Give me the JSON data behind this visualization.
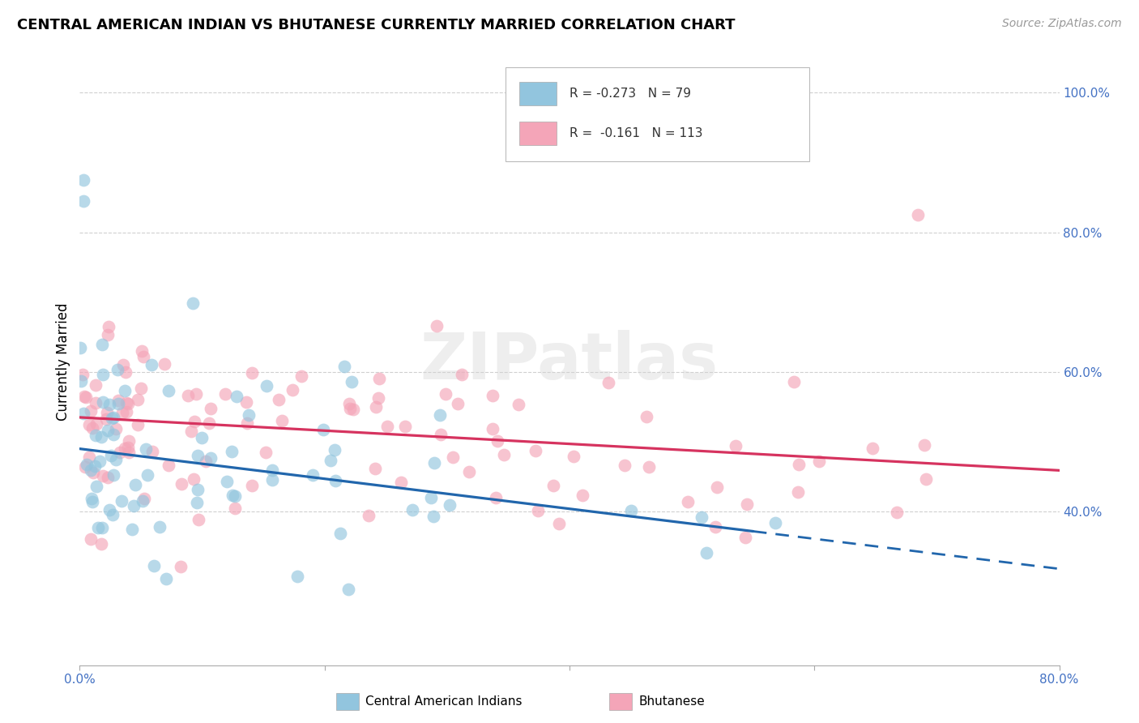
{
  "title": "CENTRAL AMERICAN INDIAN VS BHUTANESE CURRENTLY MARRIED CORRELATION CHART",
  "source": "Source: ZipAtlas.com",
  "ylabel": "Currently Married",
  "x_min": 0.0,
  "x_max": 0.8,
  "y_min": 0.18,
  "y_max": 1.05,
  "color_blue": "#92c5de",
  "color_pink": "#f4a5b8",
  "line_blue": "#2166ac",
  "line_pink": "#d6335f",
  "blue_R": -0.273,
  "blue_N": 79,
  "pink_R": -0.161,
  "pink_N": 113,
  "blue_intercept": 0.49,
  "blue_slope": -0.215,
  "pink_intercept": 0.535,
  "pink_slope": -0.095,
  "legend_label_blue": "Central American Indians",
  "legend_label_pink": "Bhutanese",
  "watermark": "ZIPatlas",
  "background": "#ffffff",
  "grid_color": "#d0d0d0",
  "tick_color": "#4472c4",
  "title_fontsize": 13,
  "source_fontsize": 10,
  "axis_label_fontsize": 12,
  "tick_fontsize": 11,
  "scatter_size": 130,
  "scatter_alpha": 0.65
}
